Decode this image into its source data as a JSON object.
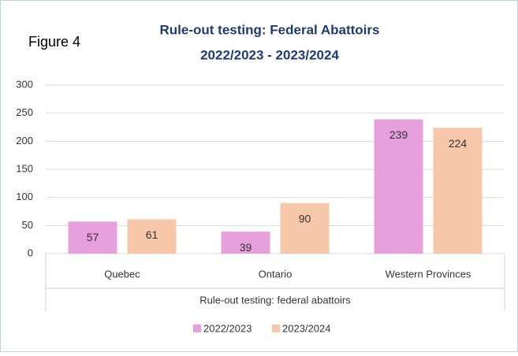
{
  "chart_data": {
    "type": "bar",
    "figure_label": "Figure 4",
    "title": "Rule-out testing: Federal Abattoirs",
    "subtitle": "2022/2023 - 2023/2024",
    "x_label": "Rule-out testing: federal abattoirs",
    "categories": [
      "Quebec",
      "Ontario",
      "Western Provinces"
    ],
    "series": [
      {
        "name": "2022/2023",
        "color": "#e6a0de",
        "values": [
          57,
          39,
          239
        ]
      },
      {
        "name": "2023/2024",
        "color": "#f7c7a9",
        "values": [
          61,
          90,
          224
        ]
      }
    ],
    "ylim": [
      0,
      300
    ],
    "yticks": [
      0,
      50,
      100,
      150,
      200,
      250,
      300
    ],
    "grid": true,
    "legend": "bottom"
  }
}
